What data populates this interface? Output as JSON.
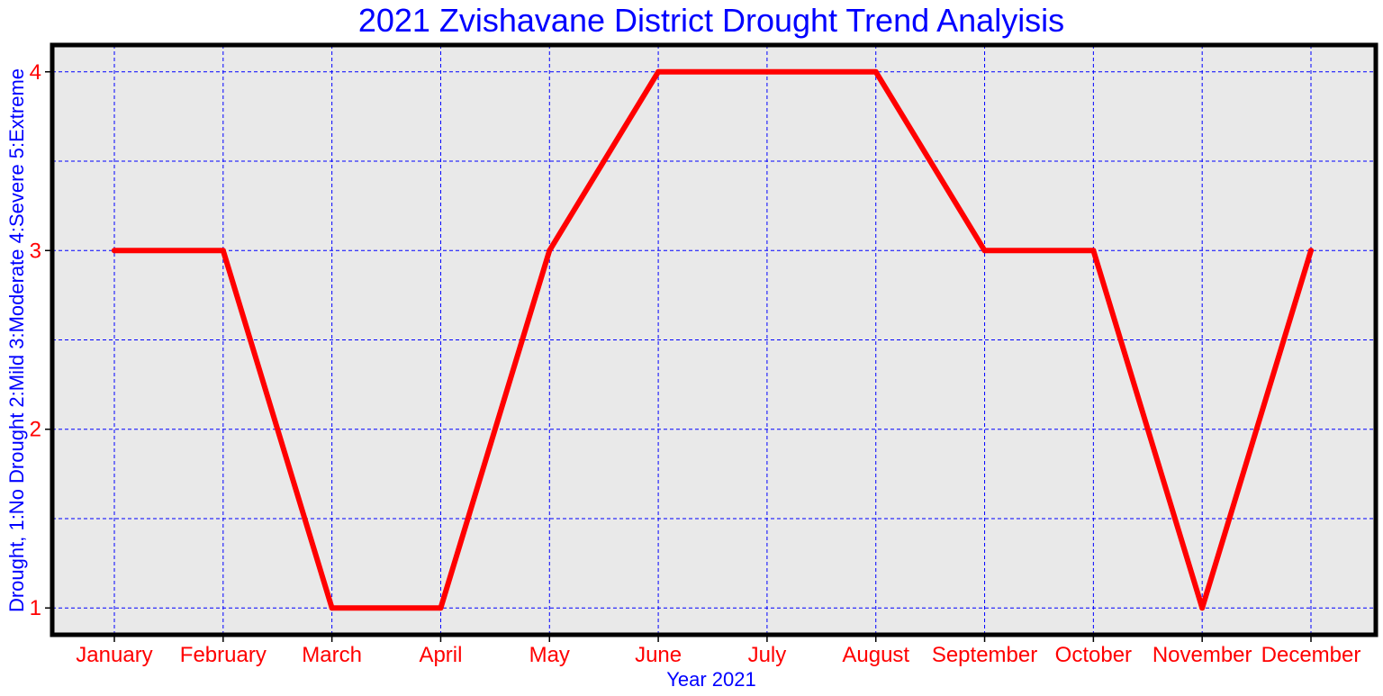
{
  "chart_data": {
    "type": "line",
    "title": "2021 Zvishavane District Drought Trend Analyisis",
    "xlabel": "Year 2021",
    "ylabel": "Drought, 1:No Drought 2:Mild 3:Moderate 4:Severe 5:Extreme",
    "categories": [
      "January",
      "February",
      "March",
      "April",
      "May",
      "June",
      "July",
      "August",
      "September",
      "October",
      "November",
      "December"
    ],
    "values": [
      3,
      3,
      1,
      1,
      3,
      4,
      4,
      4,
      3,
      3,
      1,
      3
    ],
    "ylim": [
      0.85,
      4.15
    ],
    "yticks": [
      "1",
      "2",
      "3",
      "4"
    ],
    "grid": true,
    "colors": {
      "line": "#ff0000",
      "grid": "#0000ff",
      "plot_background": "#e9e9e9",
      "frame": "#000000",
      "title": "#0000ff",
      "axis_label": "#0000ff",
      "tick_label": "#ff0000"
    }
  }
}
